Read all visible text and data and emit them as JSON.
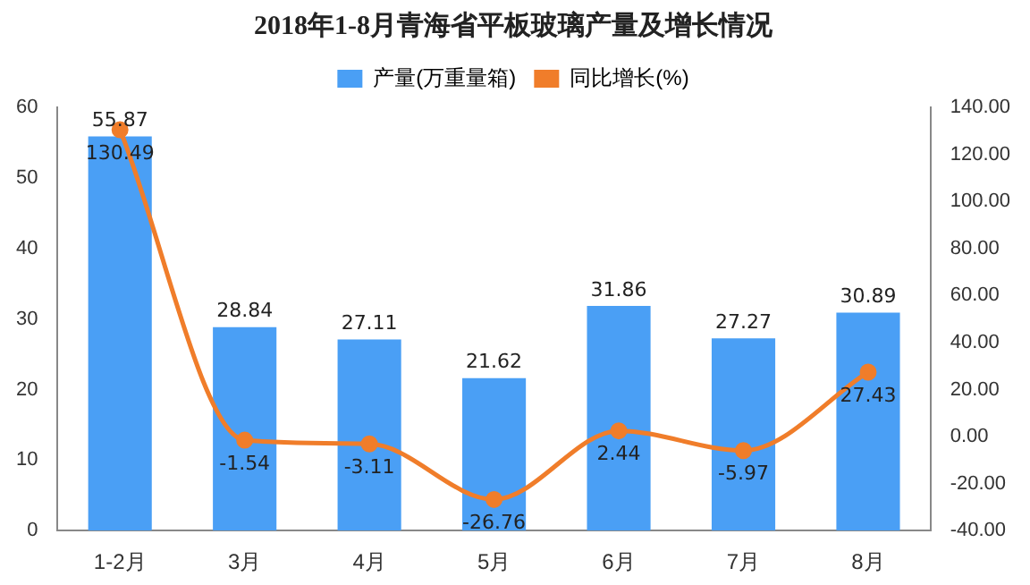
{
  "chart_data": {
    "type": "bar",
    "title": "2018年1-8月青海省平板玻璃产量及增长情况",
    "categories": [
      "1-2月",
      "3月",
      "4月",
      "5月",
      "6月",
      "7月",
      "8月"
    ],
    "series": [
      {
        "name": "产量(万重量箱)",
        "color": "#4a9ff5",
        "values": [
          55.87,
          28.84,
          27.11,
          21.62,
          31.86,
          27.27,
          30.89
        ]
      },
      {
        "name": "同比增长(%)",
        "type": "line",
        "axis": "y2",
        "color": "#f07d2a",
        "marker": "circle",
        "values": [
          130.49,
          -1.54,
          -3.11,
          -26.76,
          2.44,
          -5.97,
          27.43
        ]
      }
    ],
    "ylim": [
      0,
      60
    ],
    "yticks": [
      0,
      10,
      20,
      30,
      40,
      50,
      60
    ],
    "y2lim": [
      -40,
      140
    ],
    "y2ticks": [
      {
        "value": -40,
        "label": "-40.00"
      },
      {
        "value": -20,
        "label": "-20.00"
      },
      {
        "value": 0,
        "label": "0.00"
      },
      {
        "value": 20,
        "label": "20.00"
      },
      {
        "value": 40,
        "label": "40.00"
      },
      {
        "value": 60,
        "label": "60.00"
      },
      {
        "value": 80,
        "label": "80.00"
      },
      {
        "value": 100,
        "label": "100.00"
      },
      {
        "value": 120,
        "label": "120.00"
      },
      {
        "value": 140,
        "label": "140.00"
      }
    ],
    "data_labels": true,
    "legend": "top",
    "grid": false
  }
}
